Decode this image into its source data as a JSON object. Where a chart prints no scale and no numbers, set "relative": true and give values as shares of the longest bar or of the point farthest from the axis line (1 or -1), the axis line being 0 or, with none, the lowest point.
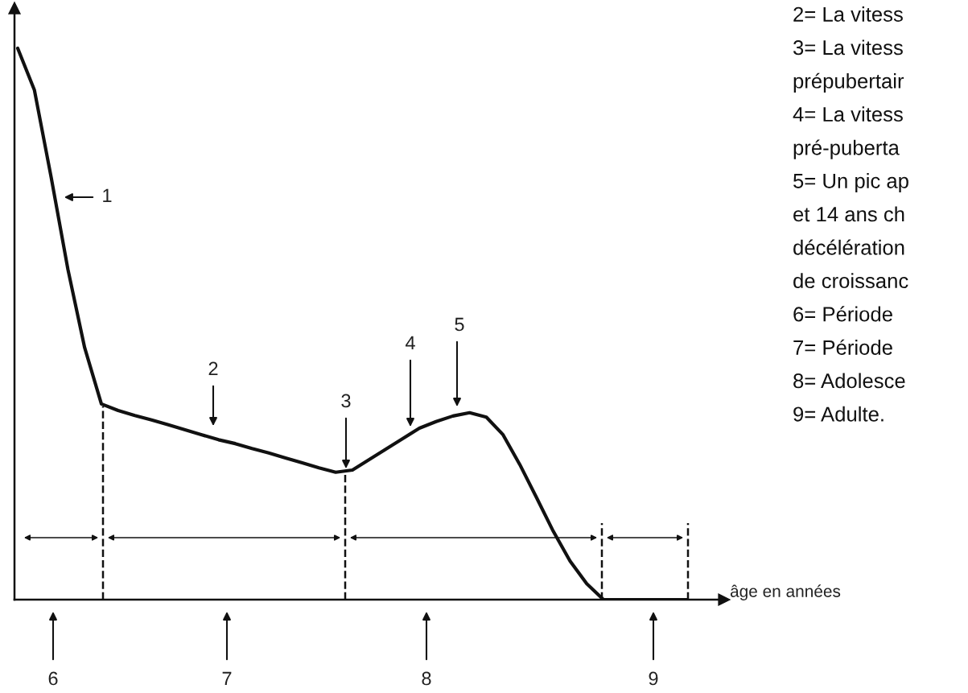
{
  "chart_data": {
    "type": "line",
    "relative": true,
    "xlabel": "âge en années",
    "categories": [
      null,
      null,
      null,
      null,
      null,
      null,
      null,
      null,
      null,
      null,
      null,
      null,
      null,
      null,
      null,
      null,
      null,
      null,
      null,
      null,
      null,
      null,
      null,
      null,
      null,
      null,
      null,
      null,
      null,
      null,
      null,
      null,
      null,
      null,
      null,
      null,
      null,
      null,
      null,
      null,
      null
    ],
    "series": [
      {
        "color": "#111111",
        "values": [
          1.0,
          0.924,
          0.766,
          0.599,
          0.457,
          0.355,
          0.343,
          0.334,
          0.326,
          0.317,
          0.308,
          0.299,
          0.29,
          0.283,
          0.274,
          0.266,
          0.257,
          0.248,
          0.239,
          0.231,
          0.235,
          0.254,
          0.273,
          0.292,
          0.311,
          0.323,
          0.333,
          0.339,
          0.331,
          0.299,
          0.245,
          0.185,
          0.124,
          0.07,
          0.029,
          0,
          0,
          0,
          0,
          0,
          0
        ]
      }
    ],
    "annotations": [
      "1",
      "2",
      "3",
      "4",
      "5",
      "6",
      "7",
      "8",
      "9",
      "2= La vitess",
      "3= La vitess",
      "prépubertair",
      "4= La vitess",
      "pré-puberta",
      "5= Un pic ap",
      "et 14 ans ch",
      "décélération",
      "de croissanc",
      "6= Période",
      "7= Période",
      "8= Adolesce",
      "9= Adulte."
    ],
    "legend": false,
    "marker": "none",
    "line_style": "solid"
  }
}
